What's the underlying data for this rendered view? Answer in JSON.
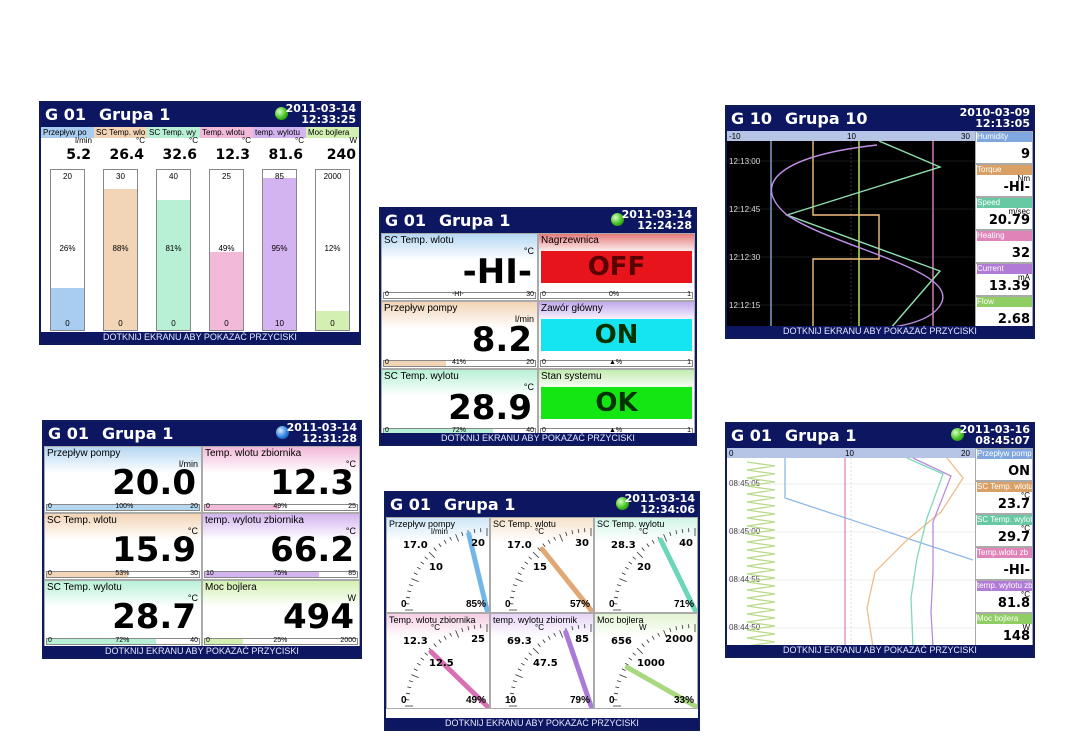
{
  "footer_text": "DOTKNIJ EKRANU ABY POKAZAĆ PRZYCISKI",
  "screen1": {
    "group": "G 01",
    "name": "Grupa 1",
    "date": "2011-03-14",
    "time": "12:33:25",
    "channels": [
      {
        "label": "Przepływ po",
        "unit": "l/min",
        "value": "5.2",
        "max": "20",
        "min": "0",
        "pct": "26%",
        "fill": 0.26,
        "color": "#a9cdf0"
      },
      {
        "label": "SC Temp. wlo",
        "unit": "°C",
        "value": "26.4",
        "max": "30",
        "min": "0",
        "pct": "88%",
        "fill": 0.88,
        "color": "#f2d4b6"
      },
      {
        "label": "SC Temp. wy",
        "unit": "°C",
        "value": "32.6",
        "max": "40",
        "min": "0",
        "pct": "81%",
        "fill": 0.81,
        "color": "#b8f0d6"
      },
      {
        "label": "Temp. wlotu",
        "unit": "°C",
        "value": "12.3",
        "max": "25",
        "min": "0",
        "pct": "49%",
        "fill": 0.49,
        "color": "#f2b9d8"
      },
      {
        "label": "temp. wylotu",
        "unit": "°C",
        "value": "81.6",
        "max": "85",
        "min": "10",
        "pct": "95%",
        "fill": 0.95,
        "color": "#d4b4f0"
      },
      {
        "label": "Moc bojlera",
        "unit": "W",
        "value": "240",
        "max": "2000",
        "min": "0",
        "pct": "12%",
        "fill": 0.12,
        "color": "#d3f0b2"
      }
    ]
  },
  "screen2": {
    "group": "G 01",
    "name": "Grupa 1",
    "date": "2011-03-14",
    "time": "12:24:28",
    "tiles": [
      {
        "label": "SC Temp. wlotu",
        "unit": "°C",
        "value": "-HI-",
        "min": "0",
        "mid": "-HI-",
        "max": "30",
        "fill": 0.0,
        "color": "#b5d7f2"
      },
      {
        "label": "Przepływ pompy",
        "unit": "l/min",
        "value": "8.2",
        "min": "0",
        "mid": "41%",
        "max": "20",
        "fill": 0.41,
        "color": "#f2d4b6"
      },
      {
        "label": "SC Temp. wylotu",
        "unit": "°C",
        "value": "28.9",
        "min": "0",
        "mid": "72%",
        "max": "40",
        "fill": 0.72,
        "color": "#b8f0d6"
      }
    ],
    "states": [
      {
        "label": "Nagrzewnica",
        "state": "OFF",
        "min": "0",
        "mid": "0%",
        "max": "1",
        "bg": "#e8141c",
        "color": "#e57b7b"
      },
      {
        "label": "Zawór główny",
        "state": "ON",
        "min": "0",
        "mid": "▲%",
        "max": "1",
        "bg": "#14e5f0",
        "color": "#c2a9ee"
      },
      {
        "label": "Stan systemu",
        "state": "OK",
        "min": "0",
        "mid": "▲%",
        "max": "1",
        "bg": "#14e614",
        "color": "#c3ecb0"
      }
    ]
  },
  "screen3": {
    "group": "G 10",
    "name": "Grupa 10",
    "date": "2010-03-09",
    "time": "12:13:05",
    "scale": [
      "-10",
      "10",
      "30"
    ],
    "times": [
      "12:13:00",
      "12:12:45",
      "12:12:30",
      "12:12:15"
    ],
    "side": [
      {
        "label": "Humidity",
        "unit": "",
        "value": "9",
        "color": "#7fa6de"
      },
      {
        "label": "Torque",
        "unit": "Nm",
        "value": "-HI-",
        "color": "#d9a066"
      },
      {
        "label": "Speed",
        "unit": "m/sec",
        "value": "20.79",
        "color": "#66c9a3"
      },
      {
        "label": "Heating",
        "unit": "",
        "value": "32",
        "color": "#e083b9"
      },
      {
        "label": "Current",
        "unit": "mA",
        "value": "13.39",
        "color": "#b07ad6"
      },
      {
        "label": "Flow",
        "unit": "",
        "value": "2.68",
        "color": "#8fce62"
      }
    ]
  },
  "screen4": {
    "group": "G 01",
    "name": "Grupa 1",
    "date": "2011-03-14",
    "time": "12:31:28",
    "tiles": [
      {
        "label": "Przepływ pompy",
        "unit": "l/min",
        "value": "20.0",
        "min": "0",
        "mid": "100%",
        "max": "20",
        "fill": 1.0,
        "color": "#b5d7f2"
      },
      {
        "label": "Temp. wlotu zbiornika",
        "unit": "°C",
        "value": "12.3",
        "min": "0",
        "mid": "49%",
        "max": "25",
        "fill": 0.49,
        "color": "#f2b9d8"
      },
      {
        "label": "SC Temp. wlotu",
        "unit": "°C",
        "value": "15.9",
        "min": "0",
        "mid": "53%",
        "max": "30",
        "fill": 0.53,
        "color": "#f2d4b6"
      },
      {
        "label": "temp. wylotu zbiornika",
        "unit": "°C",
        "value": "66.2",
        "min": "10",
        "mid": "75%",
        "max": "85",
        "fill": 0.75,
        "color": "#d4b4f0"
      },
      {
        "label": "SC Temp. wylotu",
        "unit": "°C",
        "value": "28.7",
        "min": "0",
        "mid": "72%",
        "max": "40",
        "fill": 0.72,
        "color": "#b8f0d6"
      },
      {
        "label": "Moc bojlera",
        "unit": "W",
        "value": "494",
        "min": "0",
        "mid": "25%",
        "max": "2000",
        "fill": 0.25,
        "color": "#d3f0b2"
      }
    ]
  },
  "screen5": {
    "group": "G 01",
    "name": "Grupa 1",
    "date": "2011-03-14",
    "time": "12:34:06",
    "gauges": [
      {
        "label": "Przepływ pompy",
        "unit": "l/min",
        "value": "17.0",
        "mid": "10",
        "max": "20",
        "min": "0",
        "pct": "85%",
        "fill": 0.85,
        "color": "#74b6e6",
        "bg": "#cfe6f7"
      },
      {
        "label": "SC Temp. wlotu",
        "unit": "°C",
        "value": "17.0",
        "mid": "15",
        "max": "30",
        "min": "0",
        "pct": "57%",
        "fill": 0.57,
        "color": "#e0a874",
        "bg": "#f6e2cc"
      },
      {
        "label": "SC Temp. wylotu",
        "unit": "°C",
        "value": "28.3",
        "mid": "20",
        "max": "40",
        "min": "0",
        "pct": "71%",
        "fill": 0.71,
        "color": "#6cd6b8",
        "bg": "#d0f4e6"
      },
      {
        "label": "Temp. wlotu zbiornika",
        "unit": "°C",
        "value": "12.3",
        "mid": "12.5",
        "max": "25",
        "min": "0",
        "pct": "49%",
        "fill": 0.49,
        "color": "#d870b2",
        "bg": "#f5cfe4"
      },
      {
        "label": "temp. wylotu zbiornik",
        "unit": "°C",
        "value": "69.3",
        "mid": "47.5",
        "max": "85",
        "min": "10",
        "pct": "79%",
        "fill": 0.79,
        "color": "#a97ad8",
        "bg": "#e6d3f6"
      },
      {
        "label": "Moc bojlera",
        "unit": "W",
        "value": "656",
        "mid": "1000",
        "max": "2000",
        "min": "0",
        "pct": "33%",
        "fill": 0.33,
        "color": "#a8d880",
        "bg": "#e3f4d4"
      }
    ]
  },
  "screen6": {
    "group": "G 01",
    "name": "Grupa 1",
    "date": "2011-03-16",
    "time": "08:45:07",
    "scale": [
      "0",
      "10",
      "20"
    ],
    "times": [
      "08:45:05",
      "08:45:00",
      "08:44:55",
      "08:44:50"
    ],
    "side": [
      {
        "label": "Przepływ pomp",
        "unit": "",
        "value": "ON",
        "color": "#7fa6de"
      },
      {
        "label": "SC Temp. wlotu",
        "unit": "°C",
        "value": "23.7",
        "color": "#d9a066"
      },
      {
        "label": "SC Temp. wylotu",
        "unit": "°C",
        "value": "29.7",
        "color": "#66c9a3"
      },
      {
        "label": "Temp.wlotu zb",
        "unit": "",
        "value": "-HI-",
        "color": "#e083b9"
      },
      {
        "label": "temp. wylotu zb",
        "unit": "°C",
        "value": "81.8",
        "color": "#b07ad6"
      },
      {
        "label": "Moc bojlera",
        "unit": "W",
        "value": "148",
        "color": "#8fce62"
      }
    ]
  }
}
